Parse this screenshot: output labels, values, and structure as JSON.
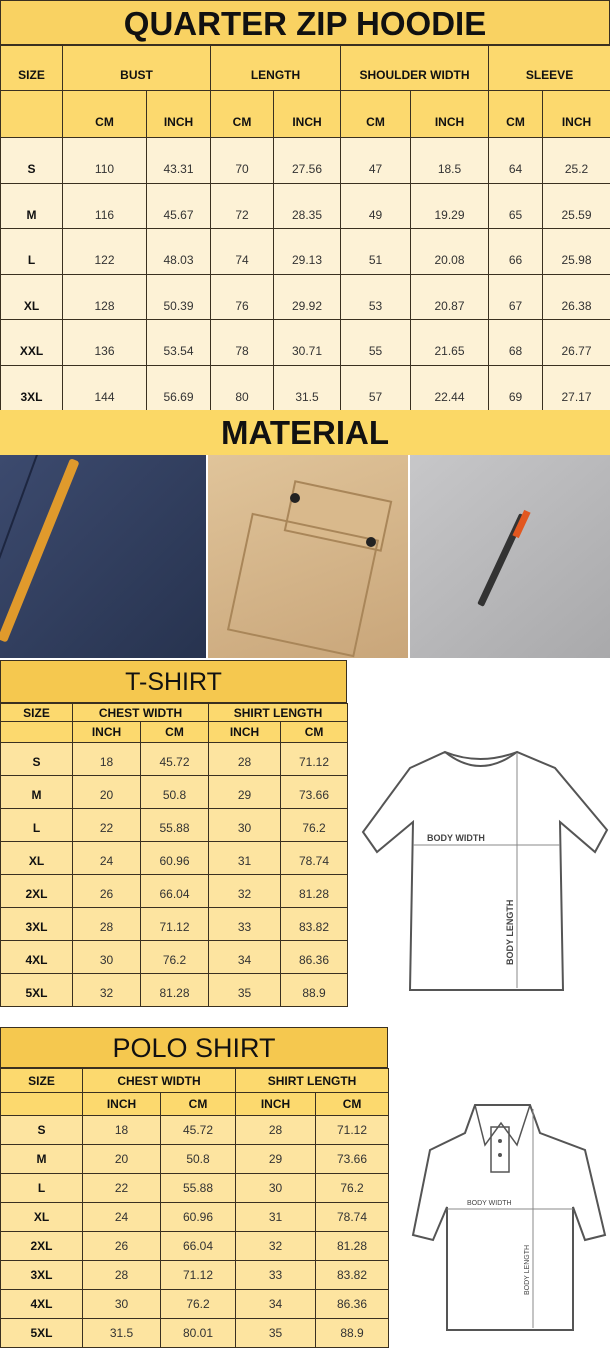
{
  "hoodie": {
    "title": "QUARTER ZIP HOODIE",
    "size_label": "SIZE",
    "groups": [
      "BUST",
      "LENGTH",
      "SHOULDER WIDTH",
      "SLEEVE"
    ],
    "units": [
      "CM",
      "INCH",
      "CM",
      "INCH",
      "CM",
      "INCH",
      "CM",
      "INCH"
    ],
    "rows": [
      [
        "S",
        "110",
        "43.31",
        "70",
        "27.56",
        "47",
        "18.5",
        "64",
        "25.2"
      ],
      [
        "M",
        "116",
        "45.67",
        "72",
        "28.35",
        "49",
        "19.29",
        "65",
        "25.59"
      ],
      [
        "L",
        "122",
        "48.03",
        "74",
        "29.13",
        "51",
        "20.08",
        "66",
        "25.98"
      ],
      [
        "XL",
        "128",
        "50.39",
        "76",
        "29.92",
        "53",
        "20.87",
        "67",
        "26.38"
      ],
      [
        "XXL",
        "136",
        "53.54",
        "78",
        "30.71",
        "55",
        "21.65",
        "68",
        "26.77"
      ],
      [
        "3XL",
        "144",
        "56.69",
        "80",
        "31.5",
        "57",
        "22.44",
        "69",
        "27.17"
      ]
    ]
  },
  "material": {
    "title": "MATERIAL"
  },
  "tshirt": {
    "title": "T-SHIRT",
    "size_label": "SIZE",
    "groups": [
      "CHEST WIDTH",
      "SHIRT LENGTH"
    ],
    "units": [
      "INCH",
      "CM",
      "INCH",
      "CM"
    ],
    "rows": [
      [
        "S",
        "18",
        "45.72",
        "28",
        "71.12"
      ],
      [
        "M",
        "20",
        "50.8",
        "29",
        "73.66"
      ],
      [
        "L",
        "22",
        "55.88",
        "30",
        "76.2"
      ],
      [
        "XL",
        "24",
        "60.96",
        "31",
        "78.74"
      ],
      [
        "2XL",
        "26",
        "66.04",
        "32",
        "81.28"
      ],
      [
        "3XL",
        "28",
        "71.12",
        "33",
        "83.82"
      ],
      [
        "4XL",
        "30",
        "76.2",
        "34",
        "86.36"
      ],
      [
        "5XL",
        "32",
        "81.28",
        "35",
        "88.9"
      ]
    ],
    "diagram": {
      "width_label": "BODY WIDTH",
      "length_label": "BODY LENGTH"
    }
  },
  "polo": {
    "title": "POLO SHIRT",
    "size_label": "SIZE",
    "groups": [
      "CHEST WIDTH",
      "SHIRT LENGTH"
    ],
    "units": [
      "INCH",
      "CM",
      "INCH",
      "CM"
    ],
    "rows": [
      [
        "S",
        "18",
        "45.72",
        "28",
        "71.12"
      ],
      [
        "M",
        "20",
        "50.8",
        "29",
        "73.66"
      ],
      [
        "L",
        "22",
        "55.88",
        "30",
        "76.2"
      ],
      [
        "XL",
        "24",
        "60.96",
        "31",
        "78.74"
      ],
      [
        "2XL",
        "26",
        "66.04",
        "32",
        "81.28"
      ],
      [
        "3XL",
        "28",
        "71.12",
        "33",
        "83.82"
      ],
      [
        "4XL",
        "30",
        "76.2",
        "34",
        "86.36"
      ],
      [
        "5XL",
        "31.5",
        "80.01",
        "35",
        "88.9"
      ]
    ],
    "diagram": {
      "width_label": "BODY WIDTH",
      "length_label": "BODY LENGTH"
    }
  },
  "colors": {
    "header": "#f9d262",
    "row_light": "#fdf2d6",
    "row_yellow": "#fde4a0"
  }
}
